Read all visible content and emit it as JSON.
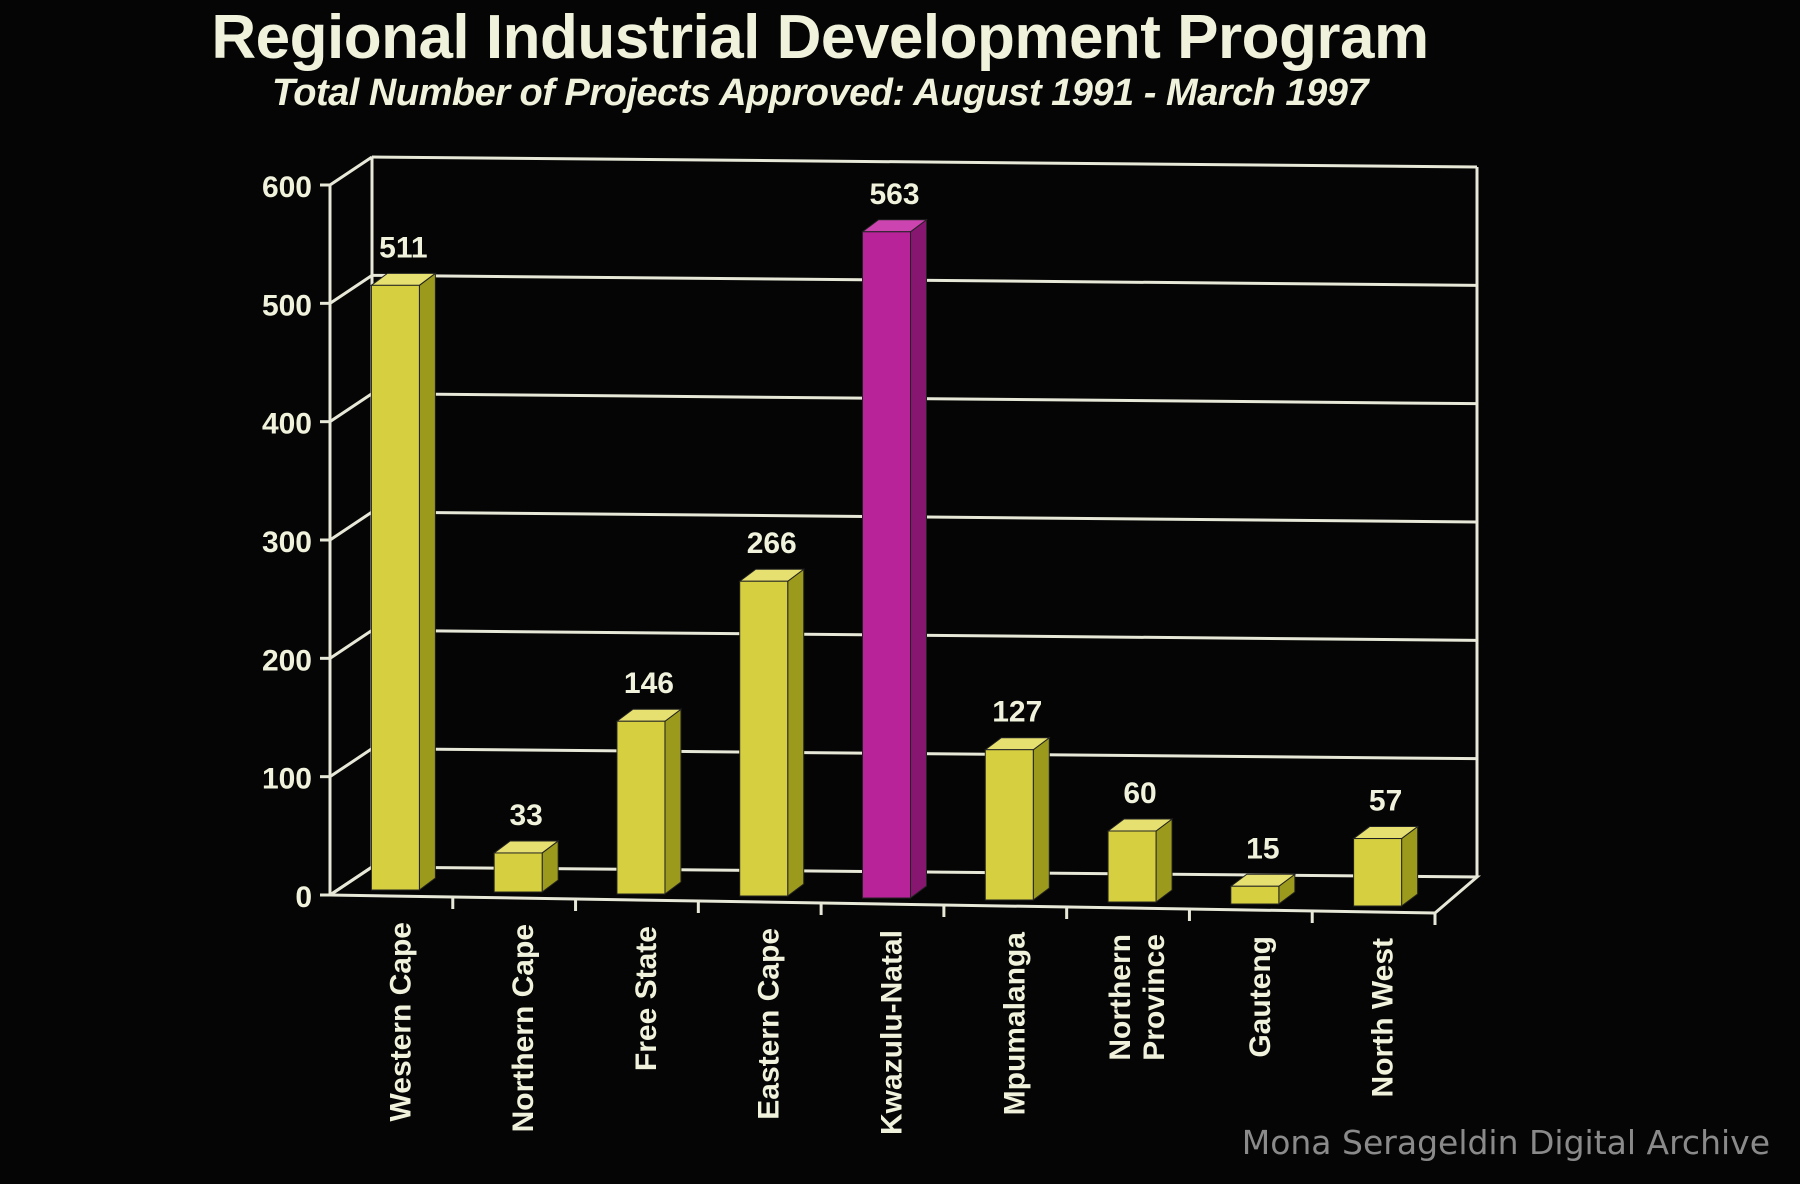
{
  "chart_data": {
    "type": "bar",
    "title": "Regional Industrial Development Program",
    "subtitle": "Total Number of Projects Approved: August 1991 - March 1997",
    "categories": [
      "Western Cape",
      "Northern Cape",
      "Free State",
      "Eastern Cape",
      "Kwazulu-Natal",
      "Mpumalanga",
      "Northern Province",
      "Gauteng",
      "North West"
    ],
    "category_lines": [
      [
        "Western Cape"
      ],
      [
        "Northern Cape"
      ],
      [
        "Free State"
      ],
      [
        "Eastern Cape"
      ],
      [
        "Kwazulu-Natal"
      ],
      [
        "Mpumalanga"
      ],
      [
        "Northern",
        "Province"
      ],
      [
        "Gauteng"
      ],
      [
        "North West"
      ]
    ],
    "values": [
      511,
      33,
      146,
      266,
      563,
      127,
      60,
      15,
      57
    ],
    "highlight_index": 4,
    "ylim": [
      0,
      600
    ],
    "yticks": [
      0,
      100,
      200,
      300,
      400,
      500,
      600
    ],
    "grid": true,
    "colors": {
      "bar": "#d6d040",
      "bar_side": "#9c9a1c",
      "bar_top": "#e6e070",
      "highlight": "#b8239a",
      "highlight_side": "#86166f",
      "highlight_top": "#cc44b0",
      "axis": "#e8e8d8",
      "text": "#f0f2dc"
    }
  },
  "watermark": "Mona Serageldin Digital Archive"
}
